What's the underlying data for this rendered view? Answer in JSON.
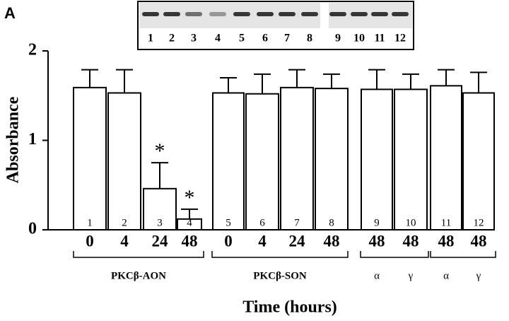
{
  "chart_data": {
    "type": "bar",
    "panel_label": "A",
    "y_label": "Absorbance",
    "x_label": "Time (hours)",
    "categories": [
      "0",
      "4",
      "24",
      "48",
      "0",
      "4",
      "24",
      "48",
      "48",
      "48",
      "48",
      "48"
    ],
    "lane_labels": [
      "1",
      "2",
      "3",
      "4",
      "5",
      "6",
      "7",
      "8",
      "9",
      "10",
      "11",
      "12"
    ],
    "values": [
      1.59,
      1.53,
      0.46,
      0.12,
      1.53,
      1.52,
      1.59,
      1.58,
      1.57,
      1.57,
      1.61,
      1.53
    ],
    "errors": [
      0.2,
      0.26,
      0.29,
      0.11,
      0.17,
      0.22,
      0.2,
      0.16,
      0.22,
      0.17,
      0.18,
      0.23
    ],
    "value_annotations": [
      null,
      null,
      "*",
      "*",
      null,
      null,
      null,
      null,
      null,
      null,
      null,
      null
    ],
    "groups": [
      "PKCβ-AON",
      "PKCβ-SON",
      "α",
      "γ",
      "α",
      "γ"
    ],
    "blot_lanes": [
      "1",
      "2",
      "3",
      "4",
      "5",
      "6",
      "7",
      "8",
      "9",
      "10",
      "11",
      "12"
    ],
    "color": "#ffffff",
    "ylim": [
      0,
      2
    ],
    "yticks": [
      0,
      1,
      2
    ]
  }
}
